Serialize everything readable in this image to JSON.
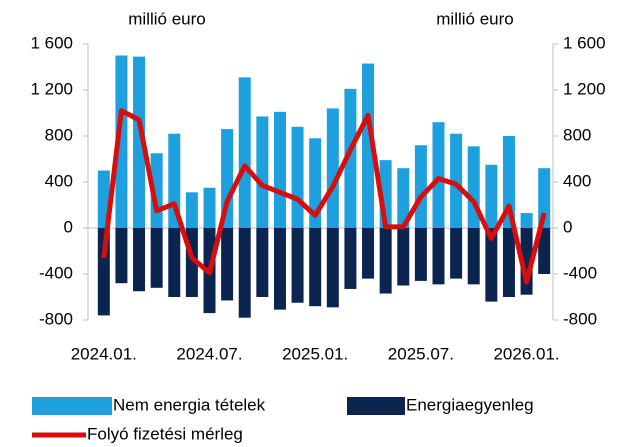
{
  "chart_data": {
    "type": "bar",
    "y_label": "millió euro",
    "y2_label": "millió euro",
    "categories": [
      "2024.01.",
      null,
      null,
      null,
      null,
      null,
      "2024.07.",
      null,
      null,
      null,
      null,
      null,
      "2025.01.",
      null,
      null,
      null,
      null,
      null,
      "2025.07.",
      null,
      null,
      null,
      null,
      null,
      "2026.01.",
      null
    ],
    "series": [
      {
        "name": "Nem energia tételek",
        "type": "bar",
        "color": "#1ea0df",
        "values": [
          500,
          1500,
          1490,
          650,
          820,
          310,
          350,
          860,
          1310,
          970,
          1010,
          880,
          780,
          1040,
          1210,
          1430,
          590,
          520,
          720,
          920,
          820,
          710,
          550,
          800,
          130,
          520
        ]
      },
      {
        "name": "Energiaegyenleg",
        "type": "bar",
        "color": "#0c2550",
        "values": [
          -760,
          -480,
          -550,
          -520,
          -600,
          -600,
          -740,
          -630,
          -780,
          -600,
          -710,
          -650,
          -680,
          -690,
          -530,
          -440,
          -570,
          -500,
          -460,
          -490,
          -440,
          -490,
          -640,
          -600,
          -580,
          -400
        ]
      },
      {
        "name": "Folyó fizetési mérleg",
        "type": "line",
        "axis": "y2",
        "color": "#d80e0e",
        "values": [
          -260,
          1020,
          940,
          150,
          210,
          -260,
          -390,
          230,
          540,
          370,
          310,
          250,
          110,
          360,
          680,
          980,
          10,
          10,
          270,
          430,
          380,
          230,
          -90,
          190,
          -470,
          130
        ]
      }
    ],
    "ylim": [
      -800,
      1600
    ],
    "yticks": [
      {
        "value": -800,
        "label": "-800"
      },
      {
        "value": -400,
        "label": "-400"
      },
      0,
      400,
      800,
      {
        "value": 1200,
        "label": "1 200"
      },
      {
        "value": 1600,
        "label": "1 600"
      }
    ],
    "y2lim": [
      -800,
      1600
    ],
    "y2ticks": [
      {
        "value": -800,
        "label": "-800"
      },
      {
        "value": -400,
        "label": "-400"
      },
      0,
      400,
      800,
      {
        "value": 1200,
        "label": "1 200"
      },
      {
        "value": 1600,
        "label": "1 600"
      }
    ],
    "grid": false
  }
}
